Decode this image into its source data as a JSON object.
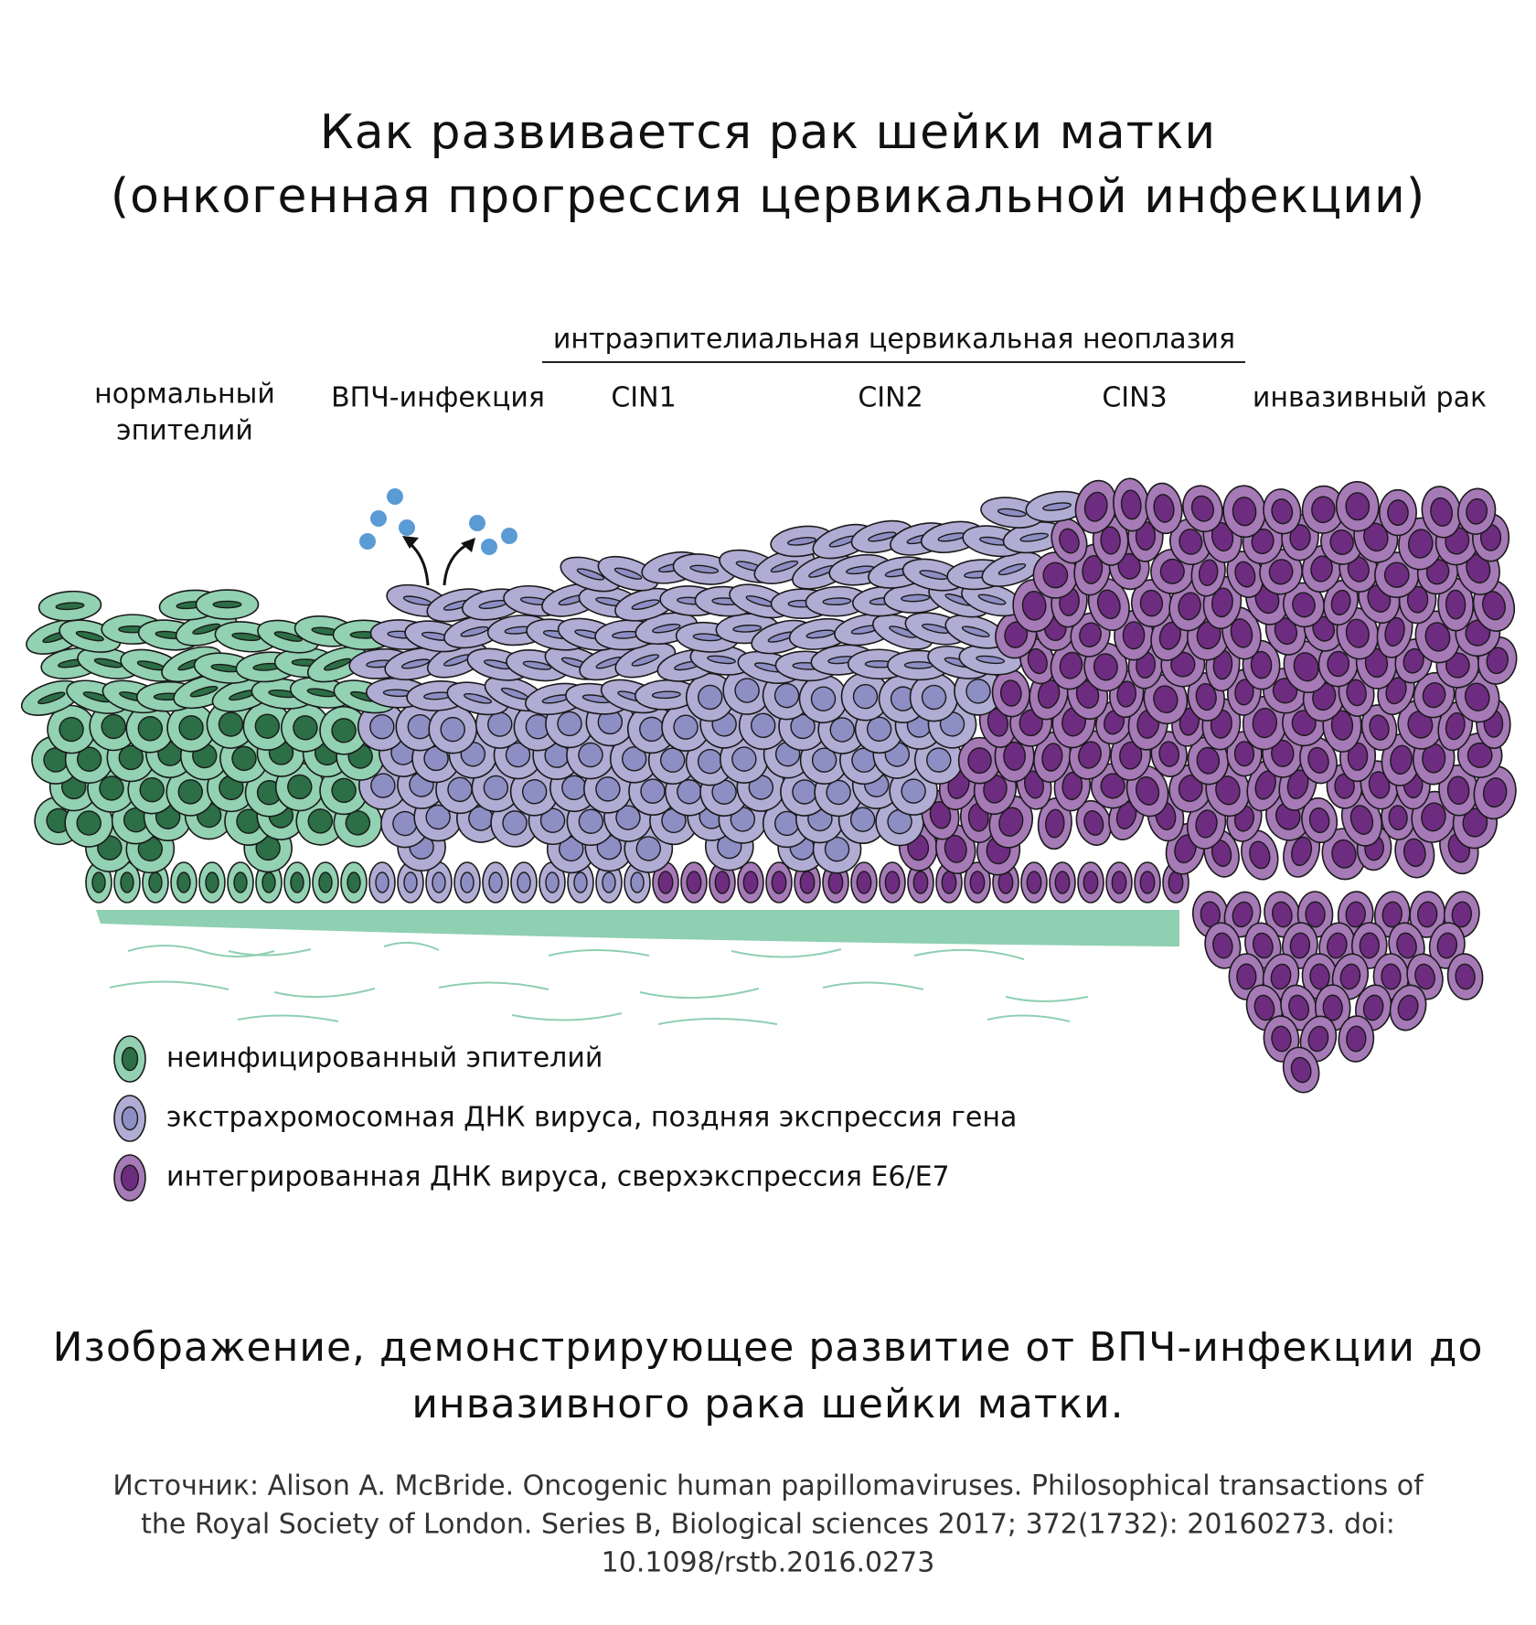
{
  "title": {
    "lines": [
      "Как развивается рак шейки матки",
      "(онкогенная прогрессия цервикальной инфекции)"
    ]
  },
  "neoplasia_label": "интраэпителиальная цервикальная неоплазия",
  "stages": [
    {
      "lines": [
        "нормальный",
        "эпителий"
      ]
    },
    {
      "lines": [
        "ВПЧ-инфекция"
      ]
    },
    {
      "lines": [
        "CIN1"
      ]
    },
    {
      "lines": [
        "CIN2"
      ]
    },
    {
      "lines": [
        "CIN3"
      ]
    },
    {
      "lines": [
        "инвазивный рак"
      ]
    }
  ],
  "legend": [
    {
      "label": "неинфицированный эпителий"
    },
    {
      "label": "экстрахромосомная ДНК вируса, поздняя экспрессия гена"
    },
    {
      "label": "интегрированная ДНК вируса, сверхэкспрессия E6/E7"
    }
  ],
  "caption": {
    "lines": [
      "Изображение, демонстрирующее развитие от ВПЧ-инфекции до",
      "инвазивного рака шейки матки."
    ]
  },
  "source": {
    "lines": [
      "Источник: Alison A. McBride. Oncogenic human papillomaviruses. Philosophical transactions of",
      "the Royal Society of London. Series B, Biological sciences 2017; 372(1732): 20160273. doi:",
      "10.1098/rstb.2016.0273"
    ]
  }
}
